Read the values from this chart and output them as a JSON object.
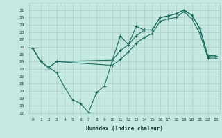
{
  "xlabel": "Humidex (Indice chaleur)",
  "background_color": "#c5e8e0",
  "grid_color": "#a8cfc8",
  "line_color": "#1a6b60",
  "xlim": [
    -0.5,
    23.5
  ],
  "ylim": [
    17,
    32
  ],
  "yticks": [
    17,
    18,
    19,
    20,
    21,
    22,
    23,
    24,
    25,
    26,
    27,
    28,
    29,
    30,
    31
  ],
  "xticks": [
    0,
    1,
    2,
    3,
    4,
    5,
    6,
    7,
    8,
    9,
    10,
    11,
    12,
    13,
    14,
    15,
    16,
    17,
    18,
    19,
    20,
    21,
    22,
    23
  ],
  "series1_x": [
    0,
    1,
    2,
    3,
    4,
    5,
    6,
    7,
    8,
    9,
    10,
    11,
    12,
    13,
    14,
    15,
    16,
    17,
    18,
    19,
    20,
    21,
    22,
    23
  ],
  "series1_y": [
    25.8,
    24.0,
    23.2,
    22.5,
    20.5,
    18.8,
    18.3,
    17.1,
    19.8,
    20.7,
    24.2,
    27.5,
    26.3,
    28.8,
    28.3,
    28.3,
    30.0,
    30.2,
    30.5,
    31.0,
    30.3,
    28.5,
    24.8,
    24.8
  ],
  "series2_x": [
    0,
    1,
    2,
    3,
    10,
    11,
    12,
    13,
    14,
    15,
    16,
    17,
    18,
    19,
    20,
    21,
    22,
    23
  ],
  "series2_y": [
    25.8,
    24.0,
    23.2,
    24.0,
    24.2,
    25.5,
    26.3,
    27.5,
    28.3,
    28.3,
    30.0,
    30.2,
    30.5,
    31.0,
    30.3,
    28.5,
    24.8,
    24.8
  ],
  "series3_x": [
    0,
    1,
    2,
    3,
    10,
    11,
    12,
    13,
    14,
    15,
    16,
    17,
    18,
    19,
    20,
    21,
    22,
    23
  ],
  "series3_y": [
    25.8,
    24.0,
    23.2,
    24.0,
    23.5,
    24.3,
    25.3,
    26.5,
    27.3,
    27.8,
    29.5,
    29.8,
    30.0,
    30.8,
    29.8,
    27.8,
    24.5,
    24.5
  ]
}
